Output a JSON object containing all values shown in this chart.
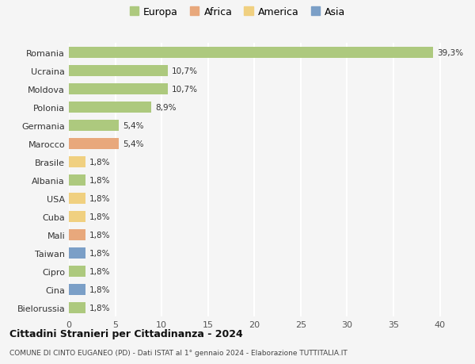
{
  "countries": [
    "Romania",
    "Ucraina",
    "Moldova",
    "Polonia",
    "Germania",
    "Marocco",
    "Brasile",
    "Albania",
    "USA",
    "Cuba",
    "Mali",
    "Taiwan",
    "Cipro",
    "Cina",
    "Bielorussia"
  ],
  "values": [
    39.3,
    10.7,
    10.7,
    8.9,
    5.4,
    5.4,
    1.8,
    1.8,
    1.8,
    1.8,
    1.8,
    1.8,
    1.8,
    1.8,
    1.8
  ],
  "labels": [
    "39,3%",
    "10,7%",
    "10,7%",
    "8,9%",
    "5,4%",
    "5,4%",
    "1,8%",
    "1,8%",
    "1,8%",
    "1,8%",
    "1,8%",
    "1,8%",
    "1,8%",
    "1,8%",
    "1,8%"
  ],
  "continents": [
    "Europa",
    "Europa",
    "Europa",
    "Europa",
    "Europa",
    "Africa",
    "America",
    "Europa",
    "America",
    "America",
    "Africa",
    "Asia",
    "Europa",
    "Asia",
    "Europa"
  ],
  "colors": {
    "Europa": "#adc97e",
    "Africa": "#e8a87c",
    "America": "#f0d080",
    "Asia": "#7b9fc7"
  },
  "legend_order": [
    "Europa",
    "Africa",
    "America",
    "Asia"
  ],
  "title1": "Cittadini Stranieri per Cittadinanza - 2024",
  "title2": "COMUNE DI CINTO EUGANEO (PD) - Dati ISTAT al 1° gennaio 2024 - Elaborazione TUTTITALIA.IT",
  "xlim": [
    0,
    42
  ],
  "xticks": [
    0,
    5,
    10,
    15,
    20,
    25,
    30,
    35,
    40
  ],
  "background_color": "#f5f5f5",
  "grid_color": "#ffffff",
  "bar_height": 0.6
}
